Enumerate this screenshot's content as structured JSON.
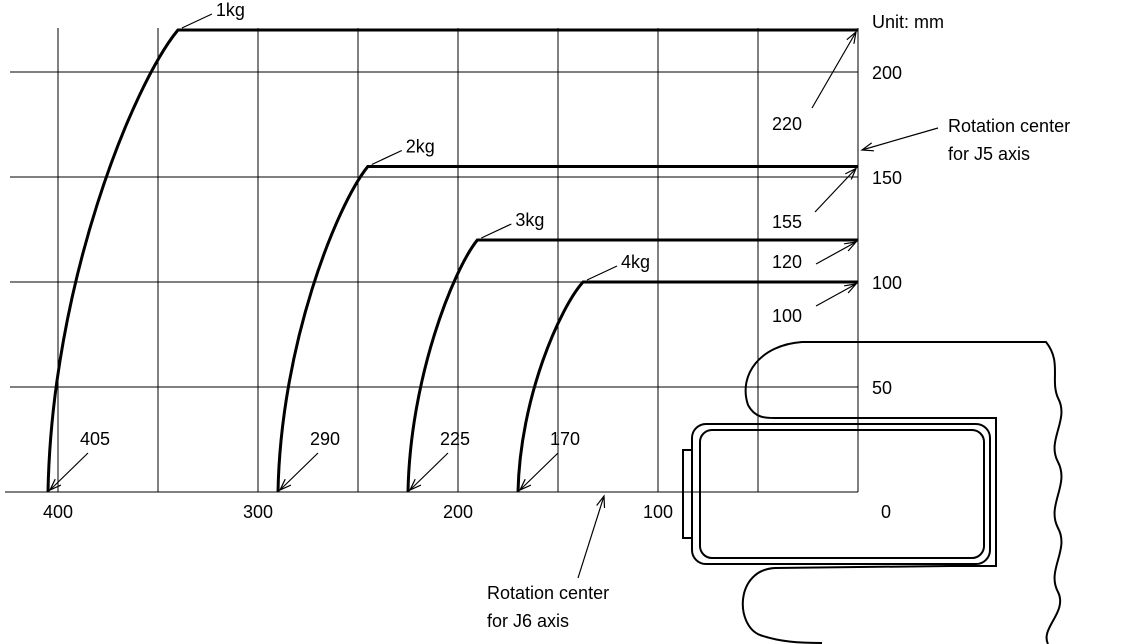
{
  "unit_label": "Unit: mm",
  "x_ticks": [
    "400",
    "300",
    "200",
    "100",
    "0"
  ],
  "y_ticks": [
    "200",
    "150",
    "100",
    "50"
  ],
  "envelopes": [
    {
      "label": "1kg",
      "offset_mm": 220,
      "radius_mm": 405,
      "offset_text": "220",
      "radius_text": "405"
    },
    {
      "label": "2kg",
      "offset_mm": 155,
      "radius_mm": 290,
      "offset_text": "155",
      "radius_text": "290"
    },
    {
      "label": "3kg",
      "offset_mm": 120,
      "radius_mm": 225,
      "offset_text": "120",
      "radius_text": "225"
    },
    {
      "label": "4kg",
      "offset_mm": 100,
      "radius_mm": 170,
      "offset_text": "100",
      "radius_text": "170"
    }
  ],
  "j5_label": [
    "Rotation center",
    "for J5 axis"
  ],
  "j6_label": [
    "Rotation center",
    "for J6 axis"
  ]
}
